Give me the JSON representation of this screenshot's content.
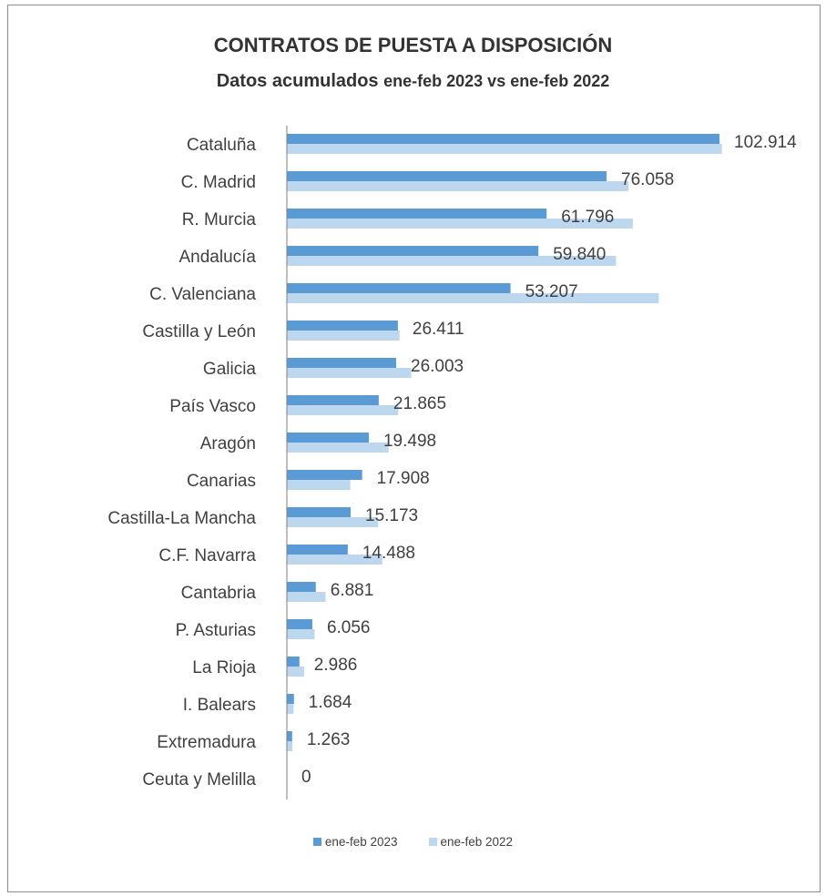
{
  "chart_data": {
    "type": "bar",
    "orientation": "horizontal",
    "title": "CONTRATOS DE PUESTA A DISPOSICIÓN",
    "subtitle_prefix": "Datos acumulados",
    "subtitle_suffix": "ene-feb 2023 vs ene-feb 2022",
    "categories": [
      "Cataluña",
      "C. Madrid",
      "R. Murcia",
      "Andalucía",
      "C. Valenciana",
      "Castilla y León",
      "Galicia",
      "País Vasco",
      "Aragón",
      "Canarias",
      "Castilla-La Mancha",
      "C.F. Navarra",
      "Cantabria",
      "P. Asturias",
      "La Rioja",
      "I. Balears",
      "Extremadura",
      "Ceuta y Melilla"
    ],
    "series": [
      {
        "name": "ene-feb 2023",
        "color": "#5b9bd5",
        "values": [
          102914,
          76058,
          61796,
          59840,
          53207,
          26411,
          26003,
          21865,
          19498,
          17908,
          15173,
          14488,
          6881,
          6056,
          2986,
          1684,
          1263,
          0
        ]
      },
      {
        "name": "ene-feb 2022",
        "color": "#bdd7ee",
        "values": [
          103500,
          81300,
          82300,
          78300,
          88500,
          26800,
          29600,
          26500,
          24200,
          15100,
          21700,
          22700,
          9200,
          6600,
          4100,
          1600,
          1300,
          0
        ]
      }
    ],
    "data_labels": [
      "102.914",
      "76.058",
      "61.796",
      "59.840",
      "53.207",
      "26.411",
      "26.003",
      "21.865",
      "19.498",
      "17.908",
      "15.173",
      "14.488",
      "6.881",
      "6.056",
      "2.986",
      "1.684",
      "1.263",
      "0"
    ],
    "xlim": [
      0,
      110000
    ],
    "grid": false,
    "legend_position": "bottom"
  }
}
